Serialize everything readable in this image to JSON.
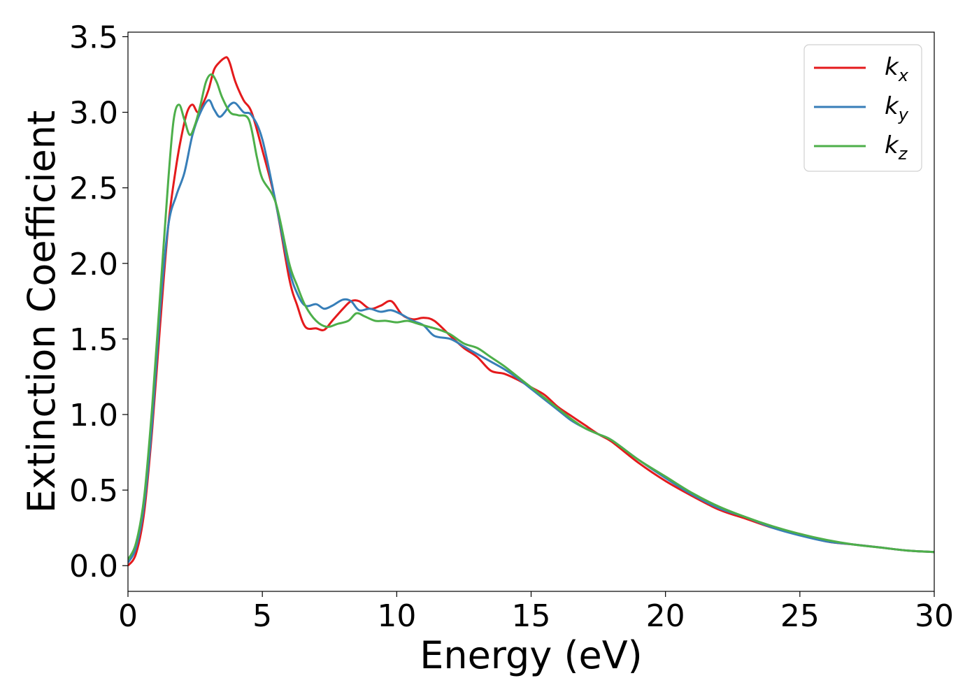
{
  "chart_data": {
    "type": "line",
    "title": "",
    "xlabel": "Energy (eV)",
    "ylabel": "Extinction Coefficient",
    "xlim": [
      0,
      30
    ],
    "ylim": [
      -0.17,
      3.53
    ],
    "xticks": [
      0,
      5,
      10,
      15,
      20,
      25,
      30
    ],
    "xtick_labels": [
      "0",
      "5",
      "10",
      "15",
      "20",
      "25",
      "30"
    ],
    "yticks": [
      0.0,
      0.5,
      1.0,
      1.5,
      2.0,
      2.5,
      3.0,
      3.5
    ],
    "ytick_labels": [
      "0.0",
      "0.5",
      "1.0",
      "1.5",
      "2.0",
      "2.5",
      "3.0",
      "3.5"
    ],
    "grid": false,
    "legend_position": "top-right",
    "series": [
      {
        "name": "k",
        "subscript": "x",
        "color": "#e41a1c",
        "x": [
          0,
          0.3,
          0.6,
          0.9,
          1.2,
          1.5,
          1.8,
          2.0,
          2.2,
          2.4,
          2.6,
          2.8,
          3.0,
          3.2,
          3.4,
          3.6,
          3.7,
          3.8,
          4.0,
          4.3,
          4.6,
          5.0,
          5.5,
          6.0,
          6.3,
          6.6,
          7.0,
          7.3,
          7.6,
          8.0,
          8.3,
          8.6,
          9.0,
          9.4,
          9.8,
          10.2,
          10.6,
          11.0,
          11.4,
          12.0,
          12.5,
          13.0,
          13.5,
          14.0,
          14.5,
          15.0,
          15.5,
          16.0,
          16.5,
          17.0,
          17.5,
          18.0,
          19.0,
          20.0,
          21.0,
          22.0,
          23.0,
          24.0,
          25.0,
          26.0,
          27.0,
          28.0,
          29.0,
          30.0
        ],
        "y": [
          0.0,
          0.08,
          0.35,
          0.9,
          1.6,
          2.25,
          2.65,
          2.85,
          3.0,
          3.05,
          3.0,
          3.06,
          3.15,
          3.28,
          3.33,
          3.36,
          3.36,
          3.32,
          3.2,
          3.08,
          3.0,
          2.75,
          2.4,
          1.9,
          1.72,
          1.58,
          1.57,
          1.56,
          1.62,
          1.7,
          1.75,
          1.75,
          1.7,
          1.72,
          1.75,
          1.66,
          1.63,
          1.64,
          1.62,
          1.52,
          1.44,
          1.38,
          1.29,
          1.27,
          1.23,
          1.18,
          1.13,
          1.05,
          0.99,
          0.93,
          0.87,
          0.82,
          0.68,
          0.56,
          0.46,
          0.37,
          0.31,
          0.25,
          0.21,
          0.16,
          0.14,
          0.12,
          0.1,
          0.09
        ]
      },
      {
        "name": "k",
        "subscript": "y",
        "color": "#377eb8",
        "x": [
          0,
          0.3,
          0.6,
          0.9,
          1.2,
          1.5,
          1.8,
          2.1,
          2.4,
          2.7,
          3.0,
          3.2,
          3.4,
          3.6,
          3.8,
          4.0,
          4.3,
          4.6,
          5.0,
          5.5,
          6.0,
          6.3,
          6.6,
          7.0,
          7.3,
          7.6,
          8.0,
          8.3,
          8.6,
          9.0,
          9.4,
          9.8,
          10.2,
          10.6,
          11.0,
          11.4,
          12.0,
          12.5,
          13.0,
          13.5,
          14.0,
          14.5,
          15.0,
          15.5,
          16.0,
          16.5,
          17.0,
          17.5,
          18.0,
          19.0,
          20.0,
          21.0,
          22.0,
          23.0,
          24.0,
          25.0,
          26.0,
          27.0,
          28.0,
          29.0,
          30.0
        ],
        "y": [
          0.02,
          0.12,
          0.4,
          0.95,
          1.7,
          2.25,
          2.45,
          2.6,
          2.85,
          3.0,
          3.08,
          3.02,
          2.97,
          3.0,
          3.05,
          3.06,
          3.0,
          2.98,
          2.82,
          2.4,
          1.96,
          1.8,
          1.72,
          1.73,
          1.7,
          1.72,
          1.76,
          1.75,
          1.69,
          1.7,
          1.68,
          1.69,
          1.66,
          1.62,
          1.59,
          1.52,
          1.5,
          1.45,
          1.4,
          1.35,
          1.3,
          1.24,
          1.17,
          1.1,
          1.03,
          0.96,
          0.91,
          0.87,
          0.83,
          0.7,
          0.58,
          0.47,
          0.38,
          0.32,
          0.25,
          0.2,
          0.16,
          0.14,
          0.12,
          0.1,
          0.09
        ]
      },
      {
        "name": "k",
        "subscript": "z",
        "color": "#4daf4a",
        "x": [
          0,
          0.3,
          0.6,
          0.9,
          1.2,
          1.5,
          1.7,
          1.9,
          2.1,
          2.3,
          2.5,
          2.7,
          2.9,
          3.1,
          3.3,
          3.5,
          3.8,
          4.1,
          4.5,
          4.8,
          5.0,
          5.5,
          6.0,
          6.3,
          6.6,
          7.0,
          7.4,
          7.8,
          8.2,
          8.5,
          8.8,
          9.2,
          9.6,
          10.0,
          10.4,
          10.8,
          11.2,
          11.6,
          12.0,
          12.5,
          13.0,
          13.5,
          14.0,
          14.5,
          15.0,
          15.5,
          16.0,
          16.5,
          17.0,
          17.5,
          18.0,
          19.0,
          20.0,
          21.0,
          22.0,
          23.0,
          24.0,
          25.0,
          26.0,
          27.0,
          28.0,
          29.0,
          30.0
        ],
        "y": [
          0.04,
          0.15,
          0.45,
          1.05,
          1.8,
          2.55,
          2.95,
          3.05,
          2.95,
          2.85,
          2.92,
          3.05,
          3.2,
          3.25,
          3.2,
          3.1,
          3.0,
          2.98,
          2.95,
          2.7,
          2.56,
          2.4,
          2.0,
          1.85,
          1.72,
          1.62,
          1.58,
          1.6,
          1.62,
          1.67,
          1.65,
          1.62,
          1.62,
          1.61,
          1.62,
          1.6,
          1.58,
          1.56,
          1.53,
          1.47,
          1.44,
          1.38,
          1.32,
          1.25,
          1.18,
          1.11,
          1.04,
          0.97,
          0.91,
          0.87,
          0.83,
          0.7,
          0.59,
          0.48,
          0.39,
          0.32,
          0.26,
          0.21,
          0.17,
          0.14,
          0.12,
          0.1,
          0.09
        ]
      }
    ]
  }
}
